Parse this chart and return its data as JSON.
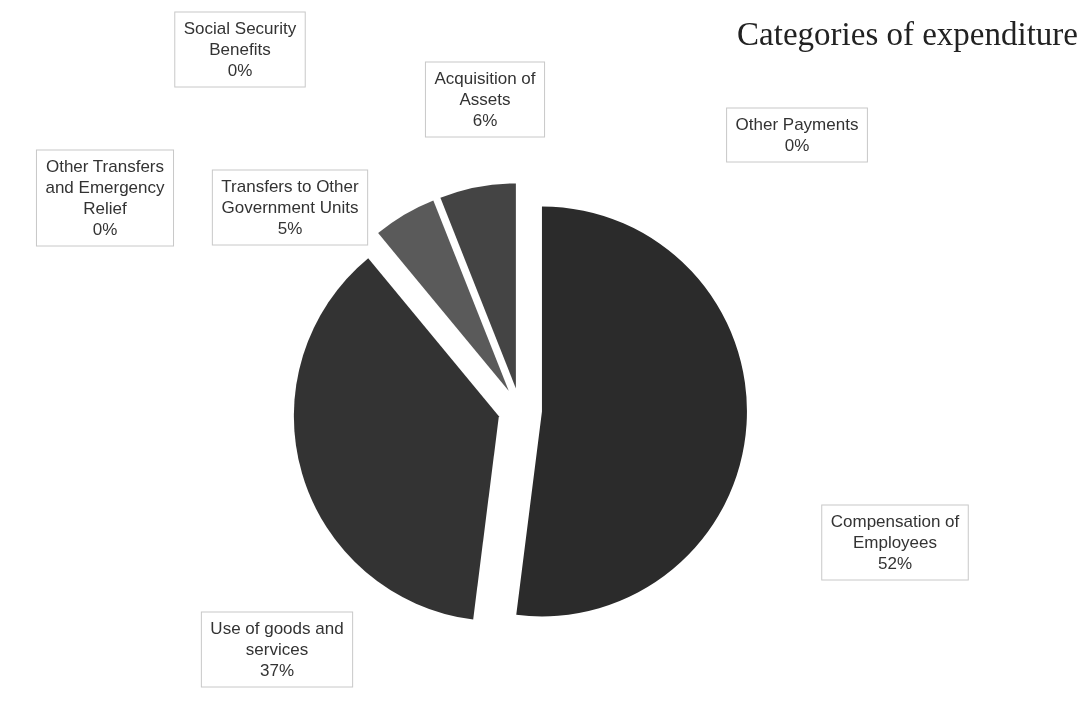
{
  "chart_data": {
    "type": "pie",
    "title": "Categories of expenditure",
    "categories": [
      "Compensation of Employees",
      "Use of goods and services",
      "Transfers to Other Government Units",
      "Other Transfers and Emergency Relief",
      "Social Security Benefits",
      "Acquisition of Assets",
      "Other Payments"
    ],
    "values": [
      52,
      37,
      5,
      0,
      0,
      6,
      0
    ],
    "value_labels": [
      "52%",
      "37%",
      "5%",
      "0%",
      "0%",
      "6%",
      "0%"
    ],
    "colors": [
      "#2b2b2b",
      "#333333",
      "#5a5a5a",
      "#505050",
      "#484848",
      "#444444",
      "#3c3c3c"
    ]
  }
}
